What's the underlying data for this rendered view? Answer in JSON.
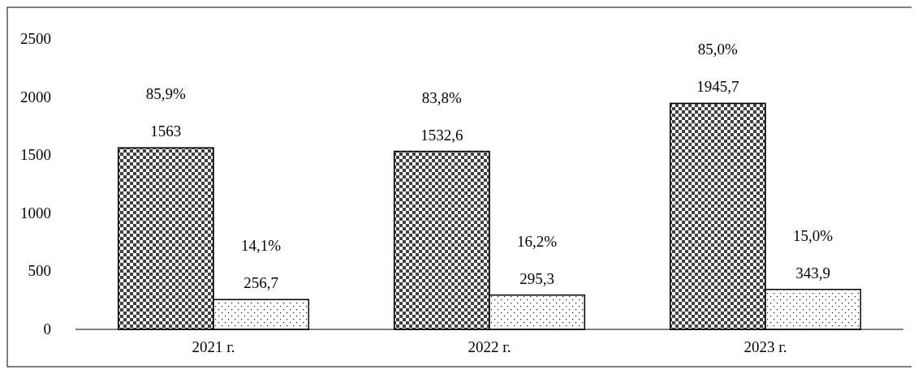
{
  "chart_data": {
    "type": "bar",
    "categories": [
      "2021 г.",
      "2022 г.",
      "2023 г."
    ],
    "series": [
      {
        "color": "#404040",
        "values": [
          1563,
          1532.6,
          1945.7
        ],
        "value_labels": [
          "1563",
          "1532,6",
          "1945,7"
        ]
      },
      {
        "color": "#ffffff",
        "values": [
          256.7,
          295.3,
          343.9
        ],
        "value_labels": [
          "256,7",
          "295,3",
          "343,9"
        ]
      }
    ],
    "ylim": [
      0,
      2500
    ],
    "yticks": [
      0,
      500,
      1000,
      1500,
      2000,
      2500
    ],
    "annotations": [
      "85,9%",
      "14,1%",
      "83,8%",
      "16,2%",
      "85,0%",
      "15,0%"
    ]
  }
}
